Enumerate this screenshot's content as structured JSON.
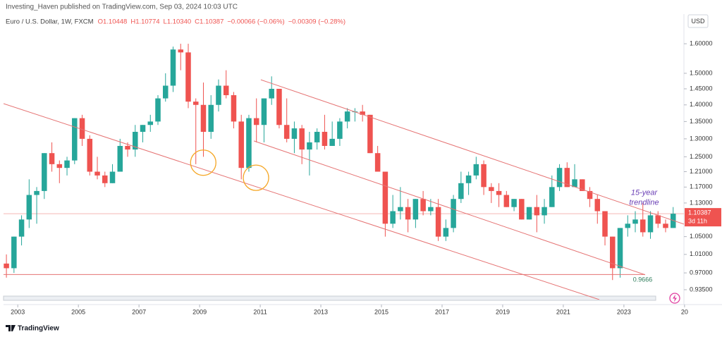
{
  "header": {
    "publisher": "Investing_Haven published on TradingView.com, Sep 03, 2024 10:03 UTC",
    "symbol": "Euro / U.S. Dollar, 1W, FXCM",
    "quote": [
      "O1.10448",
      "H1.10774",
      "L1.10340",
      "C1.10387",
      "−0.00066 (−0.06%)",
      "−0.00309 (−0.28%)"
    ],
    "logo": "TradingView"
  },
  "chart_data": {
    "type": "candlestick",
    "currency": "USD",
    "countdown": "3d 11h",
    "log_scale": true,
    "up_color": "#26a69a",
    "down_color": "#ef5350",
    "xlim": [
      2002.53,
      2024.98
    ],
    "xticks": [
      2003,
      2005,
      2007,
      2009,
      2011,
      2013,
      2015,
      2017,
      2019,
      2021,
      2023,
      {
        "value": 2025,
        "label": "20"
      }
    ],
    "ylim": [
      0.915,
      1.707
    ],
    "yticks": [
      {
        "value": 1.6,
        "label": "1.60000"
      },
      {
        "value": 1.5,
        "label": "1.50000"
      },
      {
        "value": 1.45,
        "label": "1.45000"
      },
      {
        "value": 1.4,
        "label": "1.40000"
      },
      {
        "value": 1.35,
        "label": "1.35000"
      },
      {
        "value": 1.3,
        "label": "1.30000"
      },
      {
        "value": 1.25,
        "label": "1.25000"
      },
      {
        "value": 1.21,
        "label": "1.21000"
      },
      {
        "value": 1.17,
        "label": "1.17000"
      },
      {
        "value": 1.13,
        "label": "1.13000"
      },
      {
        "value": 1.05,
        "label": "1.05000"
      },
      {
        "value": 1.01,
        "label": "1.01000"
      },
      {
        "value": 0.97,
        "label": "0.97000"
      },
      {
        "value": 0.935,
        "label": "0.93500"
      }
    ],
    "candles": [
      [
        2002.625,
        0.99,
        1.01,
        0.96,
        0.98
      ],
      [
        2002.875,
        0.98,
        1.05,
        0.97,
        1.05
      ],
      [
        2003.125,
        1.05,
        1.1,
        1.03,
        1.09
      ],
      [
        2003.375,
        1.09,
        1.19,
        1.07,
        1.15
      ],
      [
        2003.625,
        1.15,
        1.17,
        1.08,
        1.16
      ],
      [
        2003.875,
        1.16,
        1.26,
        1.14,
        1.26
      ],
      [
        2004.125,
        1.26,
        1.29,
        1.21,
        1.23
      ],
      [
        2004.375,
        1.23,
        1.24,
        1.18,
        1.22
      ],
      [
        2004.625,
        1.22,
        1.25,
        1.2,
        1.24
      ],
      [
        2004.875,
        1.24,
        1.36,
        1.23,
        1.36
      ],
      [
        2005.125,
        1.36,
        1.37,
        1.28,
        1.3
      ],
      [
        2005.375,
        1.3,
        1.31,
        1.2,
        1.21
      ],
      [
        2005.625,
        1.21,
        1.25,
        1.19,
        1.2
      ],
      [
        2005.875,
        1.2,
        1.21,
        1.17,
        1.18
      ],
      [
        2006.125,
        1.18,
        1.23,
        1.18,
        1.21
      ],
      [
        2006.375,
        1.21,
        1.3,
        1.21,
        1.28
      ],
      [
        2006.625,
        1.28,
        1.29,
        1.25,
        1.27
      ],
      [
        2006.875,
        1.27,
        1.34,
        1.25,
        1.32
      ],
      [
        2007.125,
        1.32,
        1.34,
        1.29,
        1.34
      ],
      [
        2007.375,
        1.34,
        1.37,
        1.32,
        1.35
      ],
      [
        2007.625,
        1.35,
        1.43,
        1.34,
        1.42
      ],
      [
        2007.875,
        1.42,
        1.5,
        1.41,
        1.46
      ],
      [
        2008.125,
        1.46,
        1.59,
        1.44,
        1.58
      ],
      [
        2008.375,
        1.58,
        1.6,
        1.51,
        1.57
      ],
      [
        2008.625,
        1.57,
        1.6,
        1.39,
        1.41
      ],
      [
        2008.875,
        1.41,
        1.42,
        1.23,
        1.4
      ],
      [
        2009.125,
        1.4,
        1.47,
        1.25,
        1.32
      ],
      [
        2009.375,
        1.32,
        1.43,
        1.3,
        1.4
      ],
      [
        2009.625,
        1.4,
        1.48,
        1.38,
        1.46
      ],
      [
        2009.875,
        1.46,
        1.51,
        1.42,
        1.43
      ],
      [
        2010.125,
        1.43,
        1.44,
        1.33,
        1.35
      ],
      [
        2010.375,
        1.35,
        1.37,
        1.19,
        1.22
      ],
      [
        2010.625,
        1.22,
        1.37,
        1.21,
        1.36
      ],
      [
        2010.875,
        1.36,
        1.42,
        1.29,
        1.34
      ],
      [
        2011.125,
        1.34,
        1.42,
        1.29,
        1.42
      ],
      [
        2011.375,
        1.42,
        1.49,
        1.4,
        1.45
      ],
      [
        2011.625,
        1.45,
        1.45,
        1.33,
        1.34
      ],
      [
        2011.875,
        1.34,
        1.42,
        1.29,
        1.3
      ],
      [
        2012.125,
        1.3,
        1.35,
        1.26,
        1.33
      ],
      [
        2012.375,
        1.33,
        1.34,
        1.23,
        1.27
      ],
      [
        2012.625,
        1.27,
        1.32,
        1.2,
        1.29
      ],
      [
        2012.875,
        1.29,
        1.33,
        1.27,
        1.32
      ],
      [
        2013.125,
        1.32,
        1.37,
        1.27,
        1.28
      ],
      [
        2013.375,
        1.28,
        1.35,
        1.28,
        1.3
      ],
      [
        2013.625,
        1.3,
        1.36,
        1.28,
        1.35
      ],
      [
        2013.875,
        1.35,
        1.39,
        1.33,
        1.38
      ],
      [
        2014.125,
        1.38,
        1.39,
        1.35,
        1.38
      ],
      [
        2014.375,
        1.38,
        1.4,
        1.35,
        1.37
      ],
      [
        2014.625,
        1.37,
        1.37,
        1.26,
        1.26
      ],
      [
        2014.875,
        1.26,
        1.28,
        1.21,
        1.21
      ],
      [
        2015.125,
        1.21,
        1.21,
        1.05,
        1.08
      ],
      [
        2015.375,
        1.08,
        1.15,
        1.07,
        1.11
      ],
      [
        2015.625,
        1.11,
        1.17,
        1.09,
        1.12
      ],
      [
        2015.875,
        1.12,
        1.14,
        1.06,
        1.09
      ],
      [
        2016.125,
        1.09,
        1.14,
        1.07,
        1.14
      ],
      [
        2016.375,
        1.14,
        1.16,
        1.1,
        1.11
      ],
      [
        2016.625,
        1.11,
        1.14,
        1.1,
        1.12
      ],
      [
        2016.875,
        1.12,
        1.14,
        1.04,
        1.05
      ],
      [
        2017.125,
        1.05,
        1.09,
        1.04,
        1.07
      ],
      [
        2017.375,
        1.07,
        1.15,
        1.06,
        1.14
      ],
      [
        2017.625,
        1.14,
        1.21,
        1.13,
        1.18
      ],
      [
        2017.875,
        1.18,
        1.21,
        1.15,
        1.2
      ],
      [
        2018.125,
        1.2,
        1.25,
        1.19,
        1.23
      ],
      [
        2018.375,
        1.23,
        1.24,
        1.15,
        1.17
      ],
      [
        2018.625,
        1.17,
        1.18,
        1.13,
        1.16
      ],
      [
        2018.875,
        1.16,
        1.18,
        1.12,
        1.15
      ],
      [
        2019.125,
        1.15,
        1.16,
        1.12,
        1.12
      ],
      [
        2019.375,
        1.12,
        1.14,
        1.11,
        1.14
      ],
      [
        2019.625,
        1.14,
        1.14,
        1.09,
        1.09
      ],
      [
        2019.875,
        1.09,
        1.12,
        1.09,
        1.12
      ],
      [
        2020.125,
        1.12,
        1.15,
        1.06,
        1.1
      ],
      [
        2020.375,
        1.1,
        1.14,
        1.08,
        1.12
      ],
      [
        2020.625,
        1.12,
        1.2,
        1.12,
        1.17
      ],
      [
        2020.875,
        1.17,
        1.23,
        1.16,
        1.22
      ],
      [
        2021.125,
        1.22,
        1.235,
        1.17,
        1.17
      ],
      [
        2021.375,
        1.17,
        1.23,
        1.17,
        1.19
      ],
      [
        2021.625,
        1.19,
        1.19,
        1.16,
        1.16
      ],
      [
        2021.875,
        1.16,
        1.17,
        1.12,
        1.14
      ],
      [
        2022.125,
        1.14,
        1.15,
        1.08,
        1.11
      ],
      [
        2022.375,
        1.11,
        1.11,
        1.03,
        1.05
      ],
      [
        2022.625,
        1.05,
        1.05,
        0.955,
        0.98
      ],
      [
        2022.875,
        0.98,
        1.07,
        0.96,
        1.07
      ],
      [
        2023.125,
        1.07,
        1.1,
        1.05,
        1.08
      ],
      [
        2023.375,
        1.08,
        1.11,
        1.06,
        1.09
      ],
      [
        2023.625,
        1.09,
        1.13,
        1.05,
        1.06
      ],
      [
        2023.875,
        1.06,
        1.11,
        1.045,
        1.1
      ],
      [
        2024.125,
        1.1,
        1.11,
        1.07,
        1.08
      ],
      [
        2024.375,
        1.08,
        1.09,
        1.06,
        1.07
      ],
      [
        2024.625,
        1.07,
        1.12,
        1.07,
        1.10387
      ]
    ],
    "trendline_color": "#e57373",
    "trendlines": [
      [
        [
          2002.53,
          1.404
        ],
        [
          2022.19,
          0.915
        ]
      ],
      [
        [
          2011.02,
          1.479
        ],
        [
          2024.98,
          1.079
        ]
      ],
      [
        [
          2010.79,
          1.294
        ],
        [
          2023.7,
          0.966
        ]
      ],
      [
        [
          2002.53,
          0.9666
        ],
        [
          2023.7,
          0.9666
        ]
      ]
    ],
    "circle_color": "#f5a623",
    "circles": [
      [
        2009.12,
        1.234
      ],
      [
        2010.86,
        1.194
      ]
    ],
    "annotation": {
      "lines": [
        "15-year",
        "trendline"
      ],
      "at": [
        2023.2,
        1.155
      ]
    },
    "level_label": {
      "text": "0.9666",
      "at": [
        2023.3,
        0.955
      ]
    }
  }
}
